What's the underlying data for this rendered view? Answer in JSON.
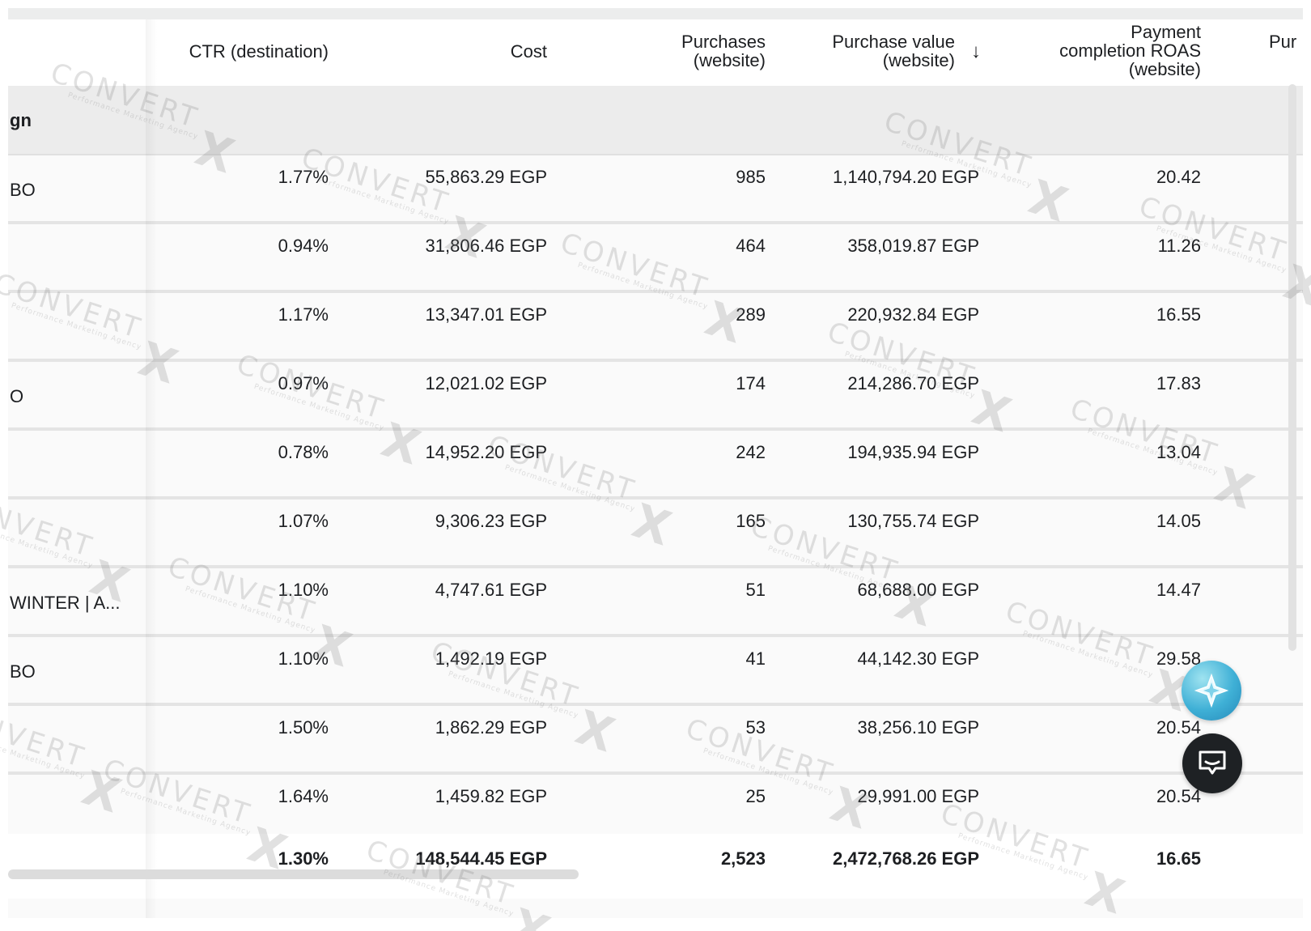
{
  "columns": {
    "ctr": "CTR (destination)",
    "cost": "Cost",
    "purchases": [
      "Purchases",
      "(website)"
    ],
    "purchase_value": [
      "Purchase value",
      "(website)"
    ],
    "purchase_value_sort_icon": "arrow-down-icon",
    "roas": [
      "Payment",
      "completion ROAS",
      "(website)"
    ],
    "pur_partial": "Pur"
  },
  "group": {
    "name_partial": "gn"
  },
  "rows": [
    {
      "name": "BO",
      "ctr": "1.77%",
      "cost": "55,863.29 EGP",
      "purchases": "985",
      "purchase_value": "1,140,794.20 EGP",
      "roas": "20.42"
    },
    {
      "name": "",
      "ctr": "0.94%",
      "cost": "31,806.46 EGP",
      "purchases": "464",
      "purchase_value": "358,019.87 EGP",
      "roas": "11.26"
    },
    {
      "name": "",
      "ctr": "1.17%",
      "cost": "13,347.01 EGP",
      "purchases": "289",
      "purchase_value": "220,932.84 EGP",
      "roas": "16.55"
    },
    {
      "name": "O",
      "ctr": "0.97%",
      "cost": "12,021.02 EGP",
      "purchases": "174",
      "purchase_value": "214,286.70 EGP",
      "roas": "17.83"
    },
    {
      "name": "",
      "ctr": "0.78%",
      "cost": "14,952.20 EGP",
      "purchases": "242",
      "purchase_value": "194,935.94 EGP",
      "roas": "13.04"
    },
    {
      "name": "",
      "ctr": "1.07%",
      "cost": "9,306.23 EGP",
      "purchases": "165",
      "purchase_value": "130,755.74 EGP",
      "roas": "14.05"
    },
    {
      "name": "WINTER | A...",
      "ctr": "1.10%",
      "cost": "4,747.61 EGP",
      "purchases": "51",
      "purchase_value": "68,688.00 EGP",
      "roas": "14.47"
    },
    {
      "name": "BO",
      "ctr": "1.10%",
      "cost": "1,492.19 EGP",
      "purchases": "41",
      "purchase_value": "44,142.30 EGP",
      "roas": "29.58"
    },
    {
      "name": "",
      "ctr": "1.50%",
      "cost": "1,862.29 EGP",
      "purchases": "53",
      "purchase_value": "38,256.10 EGP",
      "roas": "20.54"
    },
    {
      "name": "",
      "ctr": "1.64%",
      "cost": "1,459.82 EGP",
      "purchases": "25",
      "purchase_value": "29,991.00 EGP",
      "roas": "20.54"
    }
  ],
  "total": {
    "ctr": "1.30%",
    "cost": "148,544.45 EGP",
    "purchases": "2,523",
    "purchase_value": "2,472,768.26 EGP",
    "roas": "16.65"
  },
  "watermark": {
    "brand": "CONVERT",
    "mark": "X",
    "tagline": "Performance Marketing Agency"
  },
  "buttons": {
    "assistant_icon": "sparkle-icon",
    "chat_icon": "chat-bubble-icon"
  },
  "colors": {
    "assistant_accent": "#3fb0d6",
    "chat_bg": "#1e2124",
    "group_row_bg": "#ececec"
  }
}
